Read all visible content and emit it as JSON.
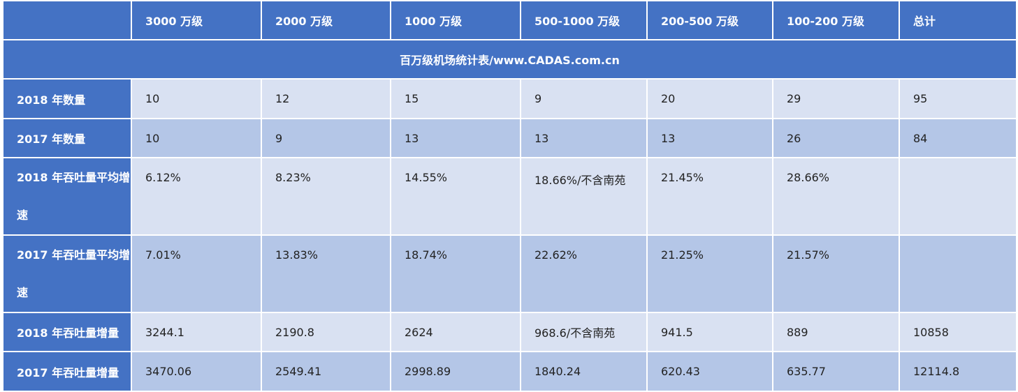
{
  "columns": [
    "",
    "3000 万级",
    "2000 万级",
    "1000 万级",
    "500-1000 万级",
    "200-500 万级",
    "100-200 万级",
    "总计"
  ],
  "title": "百万级机场统计表/www.CADAS.com.cn",
  "rows": [
    {
      "label": "2018 年数量",
      "cells": [
        "10",
        "12",
        "15",
        "9",
        "20",
        "29",
        "95"
      ]
    },
    {
      "label": "2017 年数量",
      "cells": [
        "10",
        "9",
        "13",
        "13",
        "13",
        "26",
        "84"
      ]
    },
    {
      "label": "2018 年吞吐量平均增速",
      "cells": [
        "6.12%",
        "8.23%",
        "14.55%",
        "18.66%/不含南苑",
        "21.45%",
        "28.66%",
        ""
      ]
    },
    {
      "label": "2017 年吞吐量平均增速",
      "cells": [
        "7.01%",
        "13.83%",
        "18.74%",
        "22.62%",
        "21.25%",
        "21.57%",
        ""
      ]
    },
    {
      "label": "2018 年吞吐量增量",
      "cells": [
        "3244.1",
        "2190.8",
        "2624",
        "968.6/不含南苑",
        "941.5",
        "889",
        "10858"
      ]
    },
    {
      "label": "2017 年吞吐量增量",
      "cells": [
        "3470.06",
        "2549.41",
        "2998.89",
        "1840.24",
        "620.43",
        "635.77",
        "12114.8"
      ]
    }
  ],
  "colors": {
    "header": "#4472c4",
    "band_light": "#d9e1f2",
    "band_dark": "#b4c6e7"
  }
}
